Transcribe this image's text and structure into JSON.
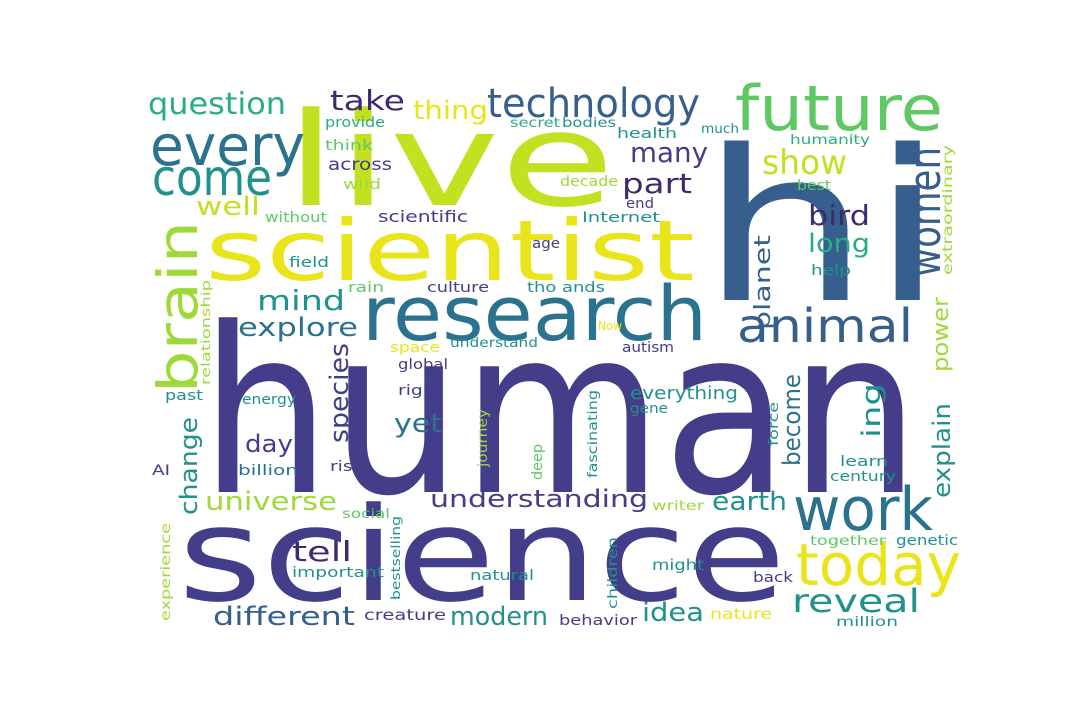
{
  "palette": {
    "dark_purple": "#3e2a6e",
    "indigo": "#433d8a",
    "blue": "#365f8e",
    "teal_blue": "#2b728e",
    "teal": "#21918c",
    "green_teal": "#28ae80",
    "green": "#5ec962",
    "light_green": "#9fd938",
    "yellow_green": "#c3e021",
    "yellow": "#e9e51a",
    "bg": "#ffffff"
  },
  "words": [
    {
      "text": "human",
      "color": "indigo"
    },
    {
      "text": "science",
      "color": "indigo"
    },
    {
      "text": "live",
      "color": "yellow_green"
    },
    {
      "text": "hi",
      "color": "blue"
    },
    {
      "text": "scientist",
      "color": "yellow"
    },
    {
      "text": "research",
      "color": "teal_blue"
    },
    {
      "text": "future",
      "color": "green"
    },
    {
      "text": "every",
      "color": "teal_blue"
    },
    {
      "text": "come",
      "color": "teal"
    },
    {
      "text": "technology",
      "color": "blue"
    },
    {
      "text": "brain",
      "color": "light_green"
    },
    {
      "text": "animal",
      "color": "blue"
    },
    {
      "text": "work",
      "color": "teal_blue"
    },
    {
      "text": "today",
      "color": "yellow"
    },
    {
      "text": "women",
      "color": "blue"
    },
    {
      "text": "question",
      "color": "green_teal"
    },
    {
      "text": "take",
      "color": "dark_purple"
    },
    {
      "text": "thing",
      "color": "yellow"
    },
    {
      "text": "show",
      "color": "yellow_green"
    },
    {
      "text": "many",
      "color": "indigo"
    },
    {
      "text": "part",
      "color": "dark_purple"
    },
    {
      "text": "well",
      "color": "yellow_green"
    },
    {
      "text": "bird",
      "color": "dark_purple"
    },
    {
      "text": "long",
      "color": "green_teal"
    },
    {
      "text": "mind",
      "color": "teal"
    },
    {
      "text": "explore",
      "color": "teal_blue"
    },
    {
      "text": "planet",
      "color": "blue"
    },
    {
      "text": "power",
      "color": "light_green"
    },
    {
      "text": "species",
      "color": "indigo"
    },
    {
      "text": "reveal",
      "color": "teal"
    },
    {
      "text": "different",
      "color": "blue"
    },
    {
      "text": "modern",
      "color": "teal"
    },
    {
      "text": "idea",
      "color": "teal"
    },
    {
      "text": "understanding",
      "color": "indigo"
    },
    {
      "text": "universe",
      "color": "light_green"
    },
    {
      "text": "earth",
      "color": "teal"
    },
    {
      "text": "tell",
      "color": "dark_purple"
    },
    {
      "text": "change",
      "color": "teal"
    },
    {
      "text": "day",
      "color": "indigo"
    },
    {
      "text": "yet",
      "color": "teal_blue"
    },
    {
      "text": "become",
      "color": "teal_blue"
    },
    {
      "text": "ing",
      "color": "teal"
    },
    {
      "text": "explain",
      "color": "teal"
    },
    {
      "text": "everything",
      "color": "teal"
    },
    {
      "text": "across",
      "color": "indigo"
    },
    {
      "text": "think",
      "color": "green"
    },
    {
      "text": "provide",
      "color": "green_teal"
    },
    {
      "text": "wild",
      "color": "light_green"
    },
    {
      "text": "without",
      "color": "green"
    },
    {
      "text": "scientific",
      "color": "indigo"
    },
    {
      "text": "field",
      "color": "teal"
    },
    {
      "text": "age",
      "color": "indigo"
    },
    {
      "text": "secret",
      "color": "green_teal"
    },
    {
      "text": "bodies",
      "color": "teal"
    },
    {
      "text": "decade",
      "color": "light_green"
    },
    {
      "text": "end",
      "color": "indigo"
    },
    {
      "text": "Internet",
      "color": "teal"
    },
    {
      "text": "health",
      "color": "teal"
    },
    {
      "text": "much",
      "color": "teal"
    },
    {
      "text": "humanity",
      "color": "green_teal"
    },
    {
      "text": "best",
      "color": "green"
    },
    {
      "text": "extraordinary",
      "color": "light_green"
    },
    {
      "text": "help",
      "color": "teal"
    },
    {
      "text": "relationship",
      "color": "light_green"
    },
    {
      "text": "rain",
      "color": "green"
    },
    {
      "text": "culture",
      "color": "indigo"
    },
    {
      "text": "tho ands",
      "color": "teal"
    },
    {
      "text": "Now",
      "color": "yellow"
    },
    {
      "text": "space",
      "color": "yellow"
    },
    {
      "text": "understand",
      "color": "teal"
    },
    {
      "text": "autism",
      "color": "indigo"
    },
    {
      "text": "global",
      "color": "indigo"
    },
    {
      "text": "right",
      "color": "indigo"
    },
    {
      "text": "past",
      "color": "teal"
    },
    {
      "text": "energy",
      "color": "teal"
    },
    {
      "text": "gene",
      "color": "teal"
    },
    {
      "text": "force",
      "color": "teal"
    },
    {
      "text": "learn",
      "color": "teal"
    },
    {
      "text": "century",
      "color": "teal"
    },
    {
      "text": "AI",
      "color": "indigo"
    },
    {
      "text": "billion",
      "color": "teal_blue"
    },
    {
      "text": "rise",
      "color": "indigo"
    },
    {
      "text": "journey",
      "color": "light_green"
    },
    {
      "text": "deep",
      "color": "green"
    },
    {
      "text": "fascinating",
      "color": "teal"
    },
    {
      "text": "social",
      "color": "green"
    },
    {
      "text": "writer",
      "color": "light_green"
    },
    {
      "text": "experience",
      "color": "light_green"
    },
    {
      "text": "important",
      "color": "teal"
    },
    {
      "text": "bestselling",
      "color": "teal"
    },
    {
      "text": "natural",
      "color": "teal"
    },
    {
      "text": "children",
      "color": "teal"
    },
    {
      "text": "might",
      "color": "teal"
    },
    {
      "text": "together",
      "color": "green"
    },
    {
      "text": "genetic",
      "color": "teal"
    },
    {
      "text": "back",
      "color": "indigo"
    },
    {
      "text": "creature",
      "color": "indigo"
    },
    {
      "text": "behavior",
      "color": "indigo"
    },
    {
      "text": "nature",
      "color": "yellow"
    },
    {
      "text": "million",
      "color": "teal"
    }
  ]
}
